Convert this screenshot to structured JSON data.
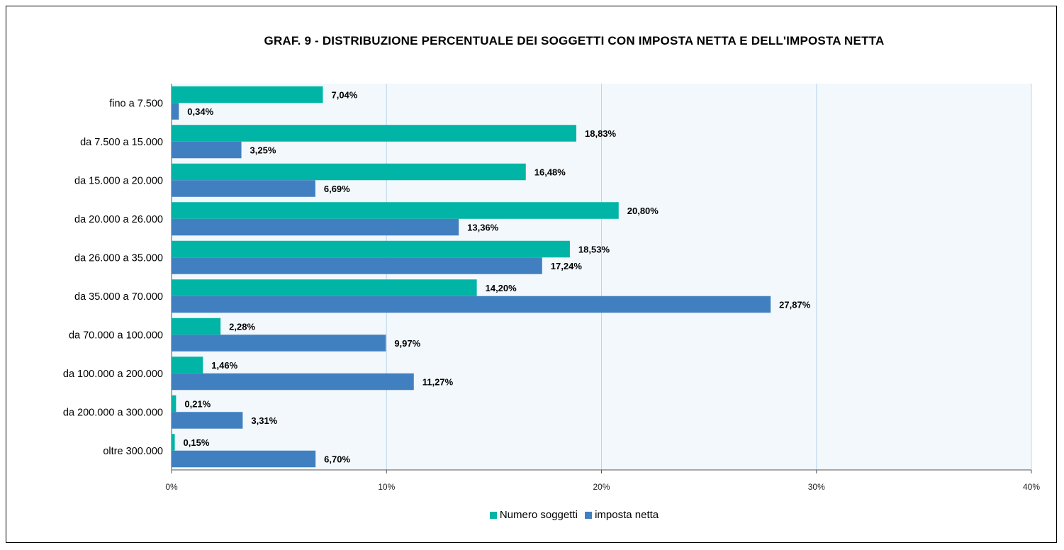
{
  "chart_data": {
    "type": "bar",
    "orientation": "horizontal",
    "title": "GRAF. 9 - DISTRIBUZIONE PERCENTUALE DEI SOGGETTI CON IMPOSTA NETTA E DELL'IMPOSTA NETTA",
    "categories": [
      "fino a 7.500",
      "da 7.500 a 15.000",
      "da 15.000 a 20.000",
      "da 20.000 a 26.000",
      "da 26.000 a 35.000",
      "da 35.000 a 70.000",
      "da 70.000 a 100.000",
      "da 100.000 a 200.000",
      "da 200.000 a 300.000",
      "oltre 300.000"
    ],
    "series": [
      {
        "name": "Numero soggetti",
        "color": "#00b5a5",
        "values": [
          7.04,
          18.83,
          16.48,
          20.8,
          18.53,
          14.2,
          2.28,
          1.46,
          0.21,
          0.15
        ],
        "labels": [
          "7,04%",
          "18,83%",
          "16,48%",
          "20,80%",
          "18,53%",
          "14,20%",
          "2,28%",
          "1,46%",
          "0,21%",
          "0,15%"
        ]
      },
      {
        "name": "imposta netta",
        "color": "#4180c0",
        "values": [
          0.34,
          3.25,
          6.69,
          13.36,
          17.24,
          27.87,
          9.97,
          11.27,
          3.31,
          6.7
        ],
        "labels": [
          "0,34%",
          "3,25%",
          "6,69%",
          "13,36%",
          "17,24%",
          "27,87%",
          "9,97%",
          "11,27%",
          "3,31%",
          "6,70%"
        ]
      }
    ],
    "xlim": [
      0,
      40
    ],
    "xticks": [
      0,
      10,
      20,
      30,
      40
    ],
    "xtick_labels": [
      "0%",
      "10%",
      "20%",
      "30%",
      "40%"
    ],
    "grid": true,
    "legend_position": "bottom",
    "plot_background": "#f2f8fc",
    "grid_color": "#bcd6ea"
  }
}
